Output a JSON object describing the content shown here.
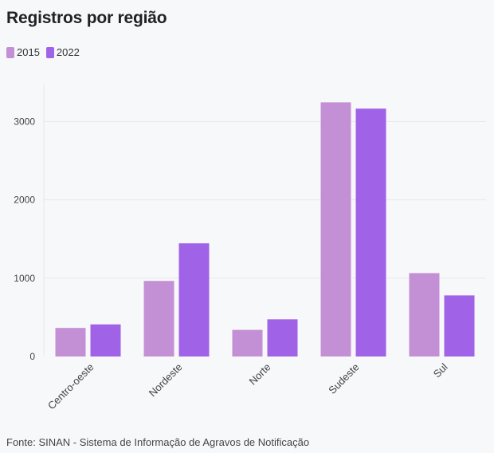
{
  "title": "Registros por região",
  "legend": [
    {
      "label": "2015",
      "color": "#c490d5"
    },
    {
      "label": "2022",
      "color": "#a062e6"
    }
  ],
  "footer": "Fonte: SINAN - Sistema de Informação de Agravos de Notificação",
  "chart_data": {
    "type": "bar",
    "title": "Registros por região",
    "categories": [
      "Centro-oeste",
      "Nordeste",
      "Norte",
      "Sudeste",
      "Sul"
    ],
    "series": [
      {
        "name": "2015",
        "color": "#c490d5",
        "values": [
          365,
          965,
          340,
          3245,
          1065
        ]
      },
      {
        "name": "2022",
        "color": "#a062e6",
        "values": [
          410,
          1445,
          475,
          3165,
          780
        ]
      }
    ],
    "yticks": [
      0,
      1000,
      2000,
      3000
    ],
    "ylim": [
      0,
      3500
    ],
    "xlabel": "",
    "ylabel": "",
    "grid": true
  }
}
